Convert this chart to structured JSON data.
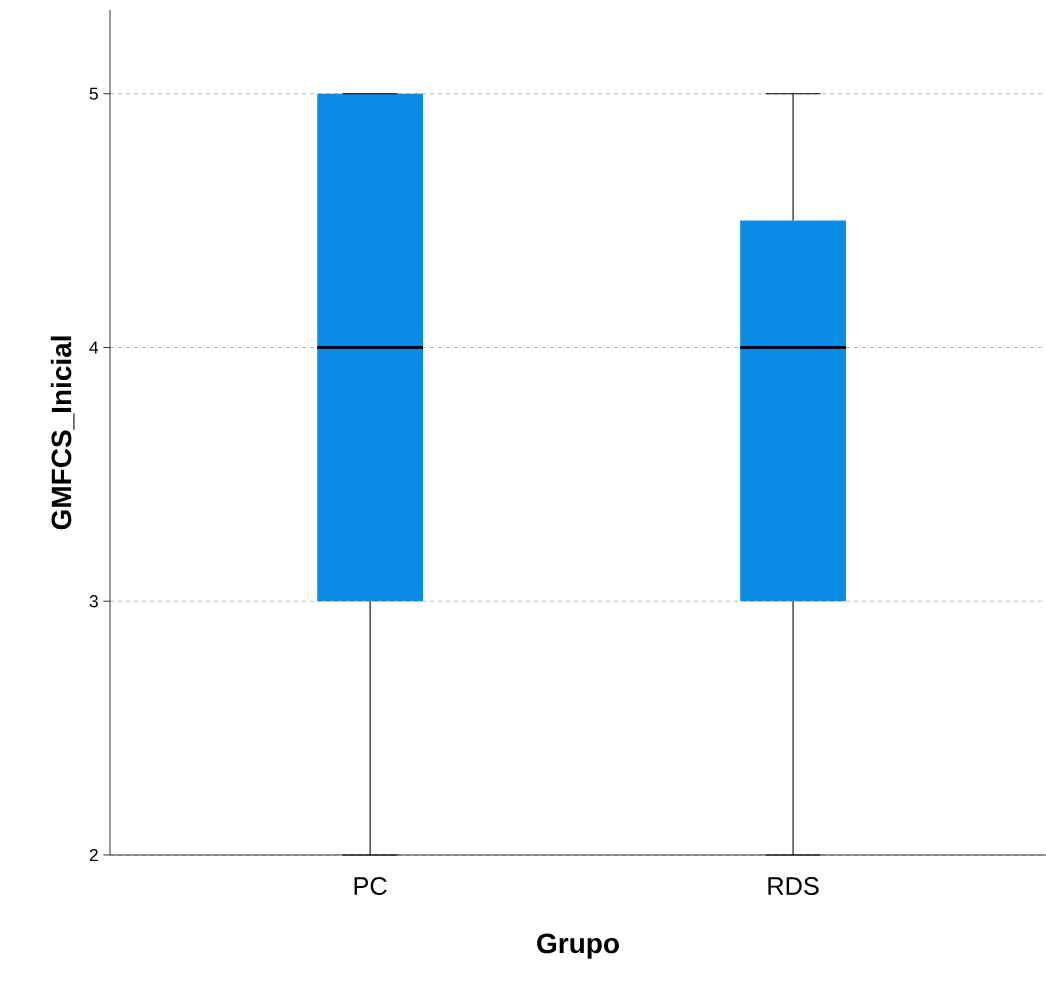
{
  "chart_data": {
    "type": "box",
    "xlabel": "Grupo",
    "ylabel": "GMFCS_Inicial",
    "categories": [
      "PC",
      "RDS"
    ],
    "boxes": [
      {
        "low": 2,
        "q1": 3,
        "median": 4,
        "q3": 5,
        "high": 5
      },
      {
        "low": 2,
        "q1": 3,
        "median": 4,
        "q3": 4.5,
        "high": 5
      }
    ],
    "color": "#0a8be6",
    "ylim": [
      2,
      5.33
    ],
    "yticks": [
      2,
      3,
      4,
      5
    ],
    "grid": "y"
  }
}
